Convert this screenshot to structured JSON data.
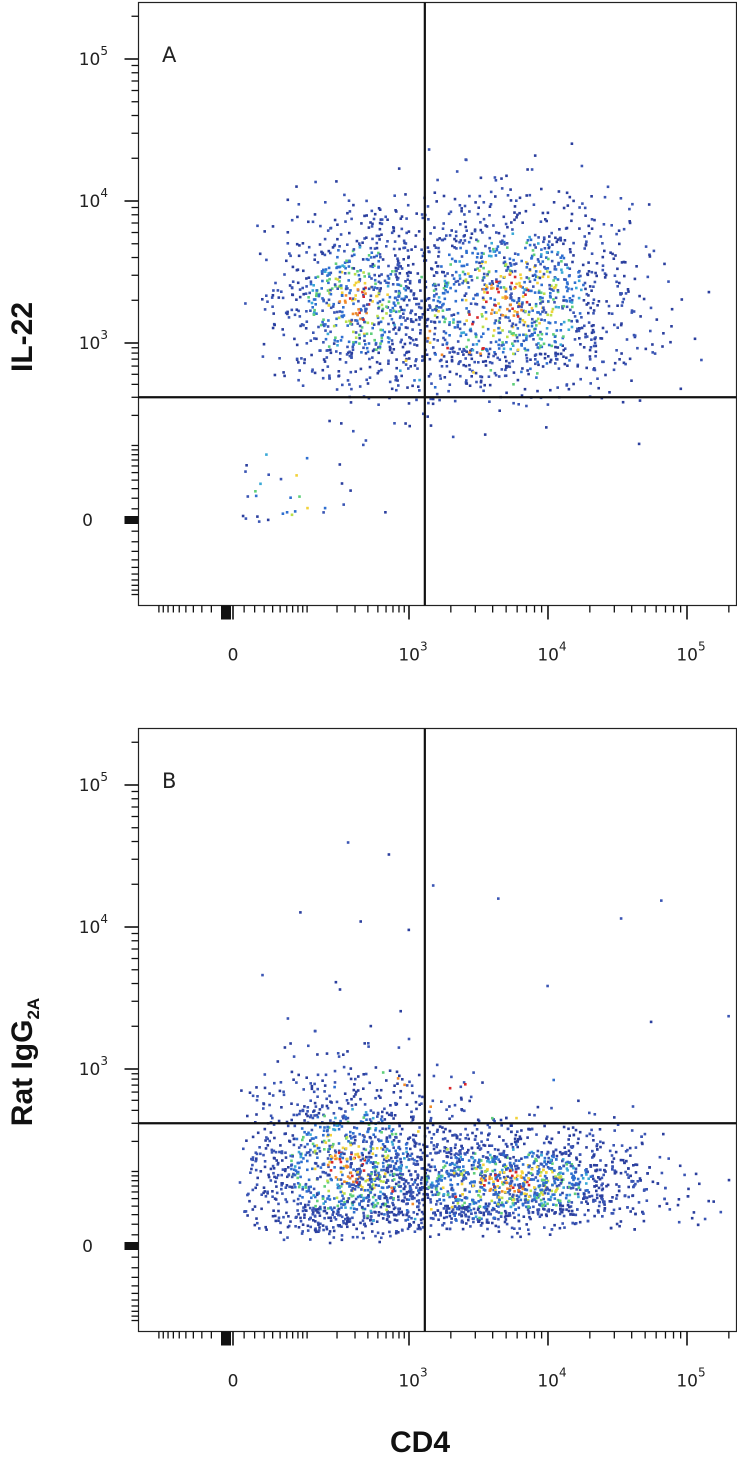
{
  "chart_data": [
    {
      "type": "scatter",
      "panel_label": "A",
      "xlabel": "",
      "ylabel": "IL-22",
      "x_scale": "biexponential",
      "y_scale": "biexponential",
      "x_ticks": [
        {
          "base": "0",
          "exp": ""
        },
        {
          "base": "10",
          "exp": "3"
        },
        {
          "base": "10",
          "exp": "4"
        },
        {
          "base": "10",
          "exp": "5"
        }
      ],
      "y_ticks": [
        {
          "base": "0",
          "exp": ""
        },
        {
          "base": "10",
          "exp": "3"
        },
        {
          "base": "10",
          "exp": "4"
        },
        {
          "base": "10",
          "exp": "5"
        }
      ],
      "quadrant_gate": {
        "x": 1300,
        "y": 300
      },
      "populations": [
        {
          "name": "",
          "x_center": 300,
          "y_center": 2000,
          "count": 650,
          "spread": [
            0.18,
            0.14
          ]
        },
        {
          "name": "",
          "x_center": 5000,
          "y_center": 2200,
          "count": 1200,
          "spread": [
            0.2,
            0.16
          ]
        },
        {
          "name": "",
          "x_center": 2500,
          "y_center": 1100,
          "count": 180,
          "spread": [
            0.3,
            0.18
          ]
        },
        {
          "name": "",
          "x_center": 50,
          "y_center": 20,
          "count": 30,
          "spread": [
            0.18,
            0.3
          ]
        }
      ]
    },
    {
      "type": "scatter",
      "panel_label": "B",
      "xlabel": "CD4",
      "ylabel": "Rat IgG",
      "ylabel_sub": "2A",
      "x_scale": "biexponential",
      "y_scale": "biexponential",
      "x_ticks": [
        {
          "base": "0",
          "exp": ""
        },
        {
          "base": "10",
          "exp": "3"
        },
        {
          "base": "10",
          "exp": "4"
        },
        {
          "base": "10",
          "exp": "5"
        }
      ],
      "y_ticks": [
        {
          "base": "0",
          "exp": ""
        },
        {
          "base": "10",
          "exp": "3"
        },
        {
          "base": "10",
          "exp": "4"
        },
        {
          "base": "10",
          "exp": "5"
        }
      ],
      "quadrant_gate": {
        "x": 1300,
        "y": 300
      },
      "populations": [
        {
          "name": "",
          "x_center": 250,
          "y_center": 120,
          "count": 1100,
          "spread": [
            0.22,
            0.2
          ]
        },
        {
          "name": "",
          "x_center": 5000,
          "y_center": 80,
          "count": 1600,
          "spread": [
            0.22,
            0.12
          ]
        },
        {
          "name": "",
          "x_center": 1200,
          "y_center": 60,
          "count": 250,
          "spread": [
            0.35,
            0.15
          ]
        },
        {
          "name": "",
          "x_center": 1500,
          "y_center": 500,
          "count": 60,
          "spread": [
            0.4,
            0.35
          ]
        }
      ]
    }
  ]
}
